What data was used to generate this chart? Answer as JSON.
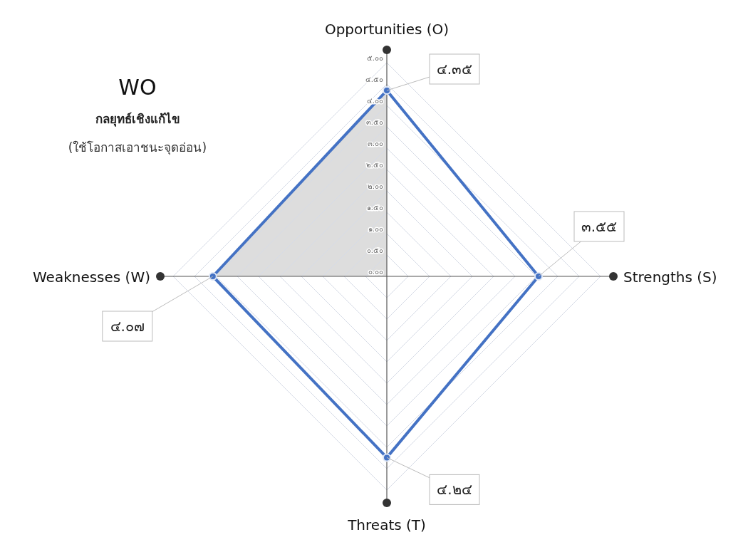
{
  "chart_data": {
    "type": "radar",
    "title": "WO",
    "subtitle": "กลยุทธ์เชิงแก้ไข",
    "annotations": [
      "(ใช้โอกาสเอาชนะจุดอ่อน)"
    ],
    "categories": [
      "Opportunities (O)",
      "Strengths (S)",
      "Threats (T)",
      "Weaknesses (W)"
    ],
    "series": [
      {
        "color": "#4472c4",
        "values": [
          4.35,
          3.55,
          4.24,
          4.07
        ],
        "value_labels": [
          "๔.๓๕",
          "๓.๕๕",
          "๔.๒๔",
          "๔.๐๗"
        ]
      }
    ],
    "ylim": [
      0,
      5
    ],
    "yticks": [
      {
        "value": 0,
        "label": "๐.๐๐"
      },
      {
        "value": 0.5,
        "label": "๐.๕๐"
      },
      {
        "value": 1,
        "label": "๑.๐๐"
      },
      {
        "value": 1.5,
        "label": "๑.๕๐"
      },
      {
        "value": 2,
        "label": "๒.๐๐"
      },
      {
        "value": 2.5,
        "label": "๒.๕๐"
      },
      {
        "value": 3,
        "label": "๓.๐๐"
      },
      {
        "value": 3.5,
        "label": "๓.๕๐"
      },
      {
        "value": 4,
        "label": "๔.๐๐"
      },
      {
        "value": 4.5,
        "label": "๔.๕๐"
      },
      {
        "value": 5,
        "label": "๕.๐๐"
      }
    ],
    "grid": true,
    "marker": "circle"
  }
}
